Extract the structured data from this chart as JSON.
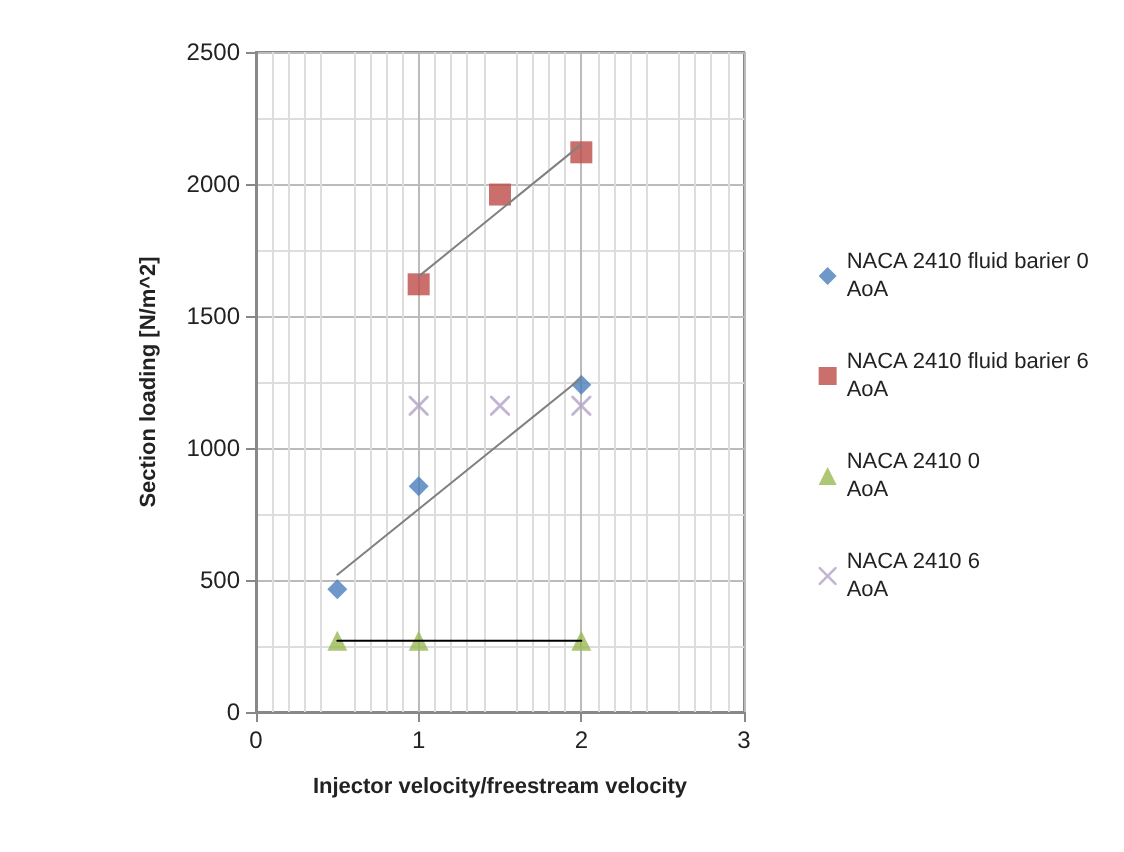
{
  "chart_data": {
    "type": "scatter",
    "xlabel": "Injector velocity/freestream velocity",
    "ylabel": "Section loading [N/m^2]",
    "xlim": [
      0,
      3
    ],
    "xticks": [
      0,
      1,
      2,
      3
    ],
    "ylim": [
      0,
      2500
    ],
    "yticks": [
      0,
      500,
      1000,
      1500,
      2000,
      2500
    ],
    "grid": true,
    "legend": "right",
    "series": [
      {
        "name": "NACA 2410 fluid barier 0 AoA",
        "color": "#4a7ebb",
        "marker": "diamond",
        "x": [
          0.5,
          1,
          2
        ],
        "values": [
          465,
          855,
          1240
        ]
      },
      {
        "name": "NACA 2410 fluid barier 6 AoA",
        "color": "#be4b48",
        "marker": "square",
        "x": [
          1,
          1.5,
          2
        ],
        "values": [
          1620,
          1960,
          2120
        ]
      },
      {
        "name": "NACA 2410 0 AoA",
        "color": "#98b954",
        "marker": "triangle",
        "x": [
          0.5,
          1,
          2
        ],
        "values": [
          270,
          270,
          270
        ]
      },
      {
        "name": "NACA 2410 6 AoA",
        "color": "#b3a2c7",
        "marker": "cross",
        "x": [
          1,
          1.5,
          2
        ],
        "values": [
          1160,
          1160,
          1160
        ]
      },
      {
        "type": "line",
        "color": "#808080",
        "marker": "none",
        "x": [
          0.5,
          2
        ],
        "values": [
          520,
          1265
        ]
      },
      {
        "type": "line",
        "color": "#808080",
        "marker": "none",
        "x": [
          1,
          2
        ],
        "values": [
          1650,
          2150
        ]
      },
      {
        "type": "line",
        "color": "#000000",
        "marker": "none",
        "x": [
          0.5,
          2
        ],
        "values": [
          270,
          270
        ]
      }
    ]
  }
}
